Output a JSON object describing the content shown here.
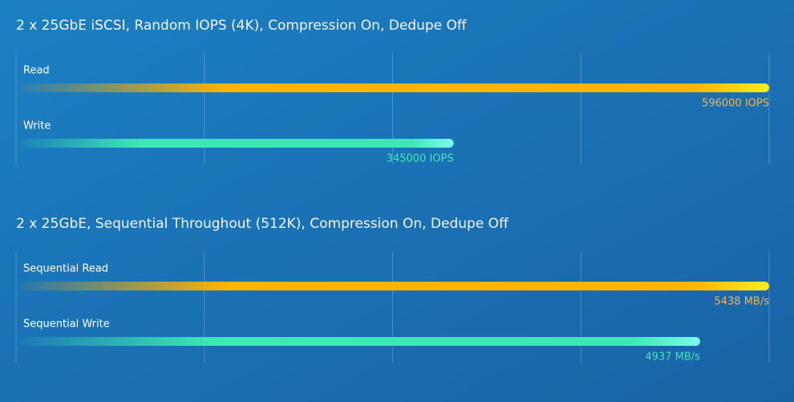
{
  "chart_data": [
    {
      "type": "bar",
      "title": "2 x 25GbE iSCSI, Random IOPS (4K), Compression On, Dedupe Off",
      "categories": [
        "Read",
        "Write"
      ],
      "values": [
        596000,
        345000
      ],
      "value_labels": [
        "596000 IOPS",
        "345000 IOPS"
      ],
      "colors": [
        "#ffb400",
        "#3ee8b4"
      ],
      "xlim": [
        0,
        596000
      ],
      "grid": true
    },
    {
      "type": "bar",
      "title": "2 x 25GbE, Sequential Throughout (512K), Compression On, Dedupe Off",
      "categories": [
        "Sequential Read",
        "Sequential Write"
      ],
      "values": [
        5438,
        4937
      ],
      "value_labels": [
        "5438 MB/s",
        "4937 MB/s"
      ],
      "colors": [
        "#ffb400",
        "#3ee8b4"
      ],
      "xlim": [
        0,
        5438
      ],
      "grid": true
    }
  ]
}
